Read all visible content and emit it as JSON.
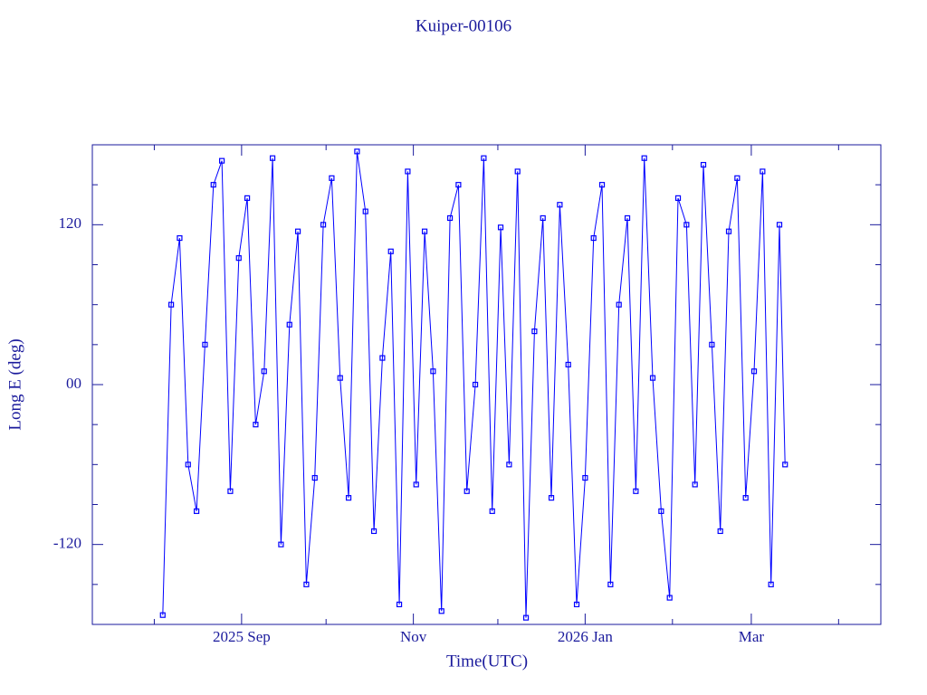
{
  "chart_data": {
    "type": "line",
    "title": "Kuiper-00106",
    "x_label": "Time(UTC)",
    "y_label": "Long E (deg)",
    "color": "#0000ff",
    "xlim": [
      "2025-07-10",
      "2026-04-16"
    ],
    "xticks": [
      {
        "value": "2025-09-01",
        "label": "2025 Sep"
      },
      {
        "value": "2025-11-01",
        "label": "Nov"
      },
      {
        "value": "2026-01-01",
        "label": "2026 Jan"
      },
      {
        "value": "2026-03-01",
        "label": "Mar"
      }
    ],
    "xminor_ticks": [
      "2025-08-01",
      "2025-10-01",
      "2025-12-01",
      "2026-02-01",
      "2026-04-01"
    ],
    "ylim": [
      -180,
      180
    ],
    "yticks": [
      {
        "value": -120,
        "label": "-120"
      },
      {
        "value": 0,
        "label": "00"
      },
      120
    ],
    "yminor_ticks": [
      -150,
      -90,
      -60,
      -30,
      30,
      60,
      90,
      150
    ],
    "x": [
      "2025-08-04",
      "2025-08-07",
      "2025-08-10",
      "2025-08-13",
      "2025-08-16",
      "2025-08-19",
      "2025-08-22",
      "2025-08-25",
      "2025-08-28",
      "2025-08-31",
      "2025-09-03",
      "2025-09-06",
      "2025-09-09",
      "2025-09-12",
      "2025-09-15",
      "2025-09-18",
      "2025-09-21",
      "2025-09-24",
      "2025-09-27",
      "2025-09-30",
      "2025-10-03",
      "2025-10-06",
      "2025-10-09",
      "2025-10-12",
      "2025-10-15",
      "2025-10-18",
      "2025-10-21",
      "2025-10-24",
      "2025-10-27",
      "2025-10-30",
      "2025-11-02",
      "2025-11-05",
      "2025-11-08",
      "2025-11-11",
      "2025-11-14",
      "2025-11-17",
      "2025-11-20",
      "2025-11-23",
      "2025-11-26",
      "2025-11-29",
      "2025-12-02",
      "2025-12-05",
      "2025-12-08",
      "2025-12-11",
      "2025-12-14",
      "2025-12-17",
      "2025-12-20",
      "2025-12-23",
      "2025-12-26",
      "2025-12-29",
      "2026-01-01",
      "2026-01-04",
      "2026-01-07",
      "2026-01-10",
      "2026-01-13",
      "2026-01-16",
      "2026-01-19",
      "2026-01-22",
      "2026-01-25",
      "2026-01-28",
      "2026-01-31",
      "2026-02-03",
      "2026-02-06",
      "2026-02-09",
      "2026-02-12",
      "2026-02-15",
      "2026-02-18",
      "2026-02-21",
      "2026-02-24",
      "2026-02-27",
      "2026-03-02",
      "2026-03-05",
      "2026-03-08",
      "2026-03-11",
      "2026-03-13"
    ],
    "values": [
      -173,
      60,
      110,
      -60,
      -95,
      30,
      150,
      168,
      -80,
      95,
      140,
      -30,
      10,
      170,
      -120,
      45,
      115,
      -150,
      -70,
      120,
      155,
      5,
      -85,
      175,
      130,
      -110,
      20,
      100,
      -165,
      160,
      -75,
      115,
      10,
      -170,
      125,
      150,
      -80,
      0,
      170,
      -95,
      118,
      -60,
      160,
      -175,
      40,
      125,
      -85,
      135,
      15,
      -165,
      -70,
      110,
      150,
      -150,
      60,
      125,
      -80,
      170,
      5,
      -95,
      -160,
      140,
      120,
      -75,
      165,
      30,
      -110,
      115,
      155,
      -85,
      10,
      160,
      -150,
      120,
      -60
    ]
  }
}
